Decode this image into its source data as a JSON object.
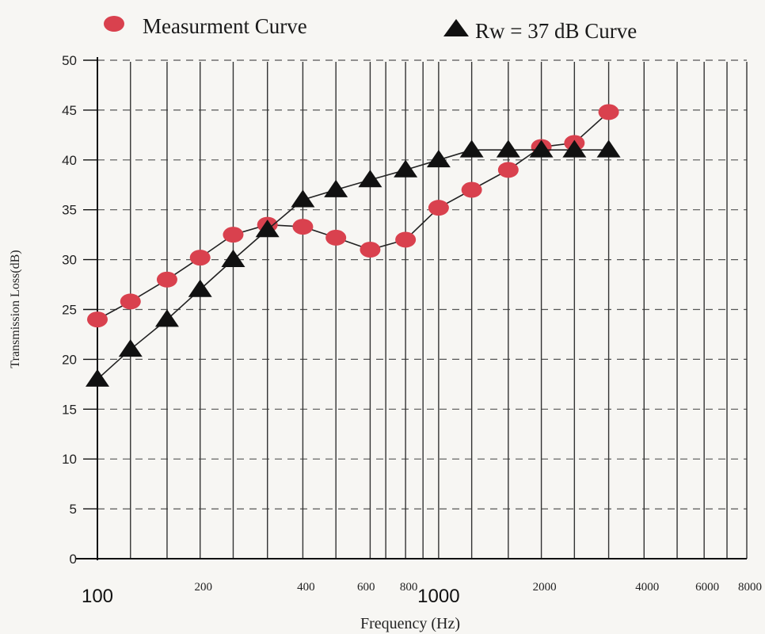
{
  "chart_data": {
    "type": "line",
    "xlabel": "Frequency (Hz)",
    "ylabel": "Transmission Loss(dB)",
    "x_scale": "log",
    "xlim": [
      100,
      8000
    ],
    "ylim": [
      0,
      50
    ],
    "y_ticks": [
      0,
      5,
      10,
      15,
      20,
      25,
      30,
      35,
      40,
      45,
      50
    ],
    "x_tick_labels": [
      {
        "value": 100,
        "label": "100",
        "size": "large"
      },
      {
        "value": 200,
        "label": "200",
        "size": "small"
      },
      {
        "value": 400,
        "label": "400",
        "size": "small"
      },
      {
        "value": 600,
        "label": "600",
        "size": "small"
      },
      {
        "value": 800,
        "label": "800",
        "size": "small"
      },
      {
        "value": 1000,
        "label": "1000",
        "size": "large"
      },
      {
        "value": 2000,
        "label": "2000",
        "size": "small"
      },
      {
        "value": 4000,
        "label": "4000",
        "size": "small"
      },
      {
        "value": 6000,
        "label": "6000",
        "size": "small"
      },
      {
        "value": 8000,
        "label": "8000",
        "size": "small"
      }
    ],
    "x_gridlines": [
      100,
      125,
      160,
      200,
      250,
      315,
      400,
      500,
      630,
      700,
      800,
      900,
      1000,
      1250,
      1600,
      2000,
      2500,
      3150,
      4000,
      5000,
      6000,
      7000,
      8000
    ],
    "grid": true,
    "legend_position": "top",
    "series": [
      {
        "name": "Measurment Curve",
        "marker": "circle",
        "color": "#d9414e",
        "x": [
          100,
          125,
          160,
          200,
          250,
          315,
          400,
          500,
          630,
          800,
          1000,
          1250,
          1600,
          2000,
          2500,
          3150
        ],
        "y": [
          24,
          25.8,
          28,
          30.2,
          32.5,
          33.5,
          33.3,
          32.2,
          31,
          32,
          35.2,
          37,
          39,
          41.3,
          41.7,
          44.8
        ]
      },
      {
        "name": "Rw = 37 dB Curve",
        "marker": "triangle",
        "color": "#111111",
        "x": [
          100,
          125,
          160,
          200,
          250,
          315,
          400,
          500,
          630,
          800,
          1000,
          1250,
          1600,
          2000,
          2500,
          3150
        ],
        "y": [
          18,
          21,
          24,
          27,
          30,
          33,
          36,
          37,
          38,
          39,
          40,
          41,
          41,
          41,
          41,
          41
        ]
      }
    ]
  }
}
